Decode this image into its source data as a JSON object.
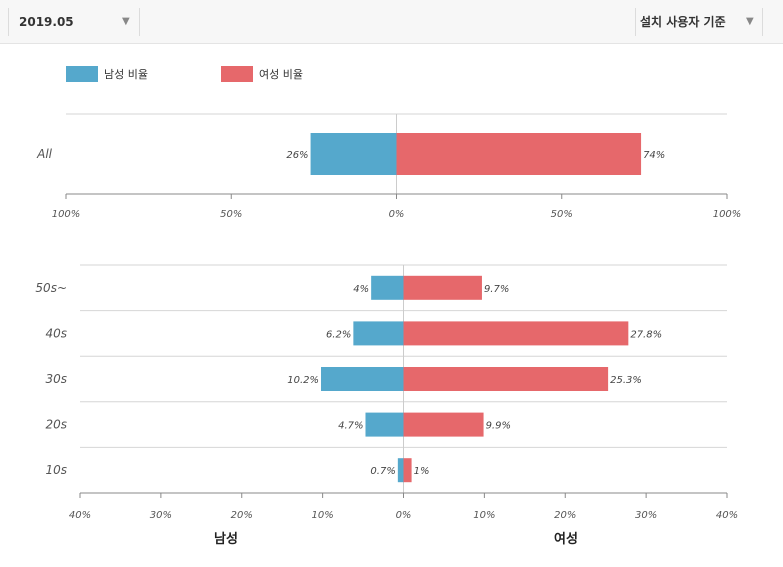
{
  "header": {
    "period_value": "2019.05",
    "basis_value": "설치 사용자 기준"
  },
  "colors": {
    "male": "#55a8cc",
    "female": "#e6686b"
  },
  "legend": {
    "male_label": "남성 비율",
    "female_label": "여성 비율"
  },
  "chart_data": [
    {
      "type": "bar",
      "orientation": "horizontal-diverging",
      "categories": [
        "All"
      ],
      "series": [
        {
          "name": "남성 비율",
          "values": [
            26
          ]
        },
        {
          "name": "여성 비율",
          "values": [
            74
          ]
        }
      ],
      "value_labels": {
        "male": [
          "26%"
        ],
        "female": [
          "74%"
        ]
      },
      "xlim": [
        -100,
        100
      ],
      "ticks": [
        "100%",
        "50%",
        "0%",
        "50%",
        "100%"
      ],
      "grid": true
    },
    {
      "type": "bar",
      "orientation": "horizontal-diverging",
      "categories": [
        "50s~",
        "40s",
        "30s",
        "20s",
        "10s"
      ],
      "series": [
        {
          "name": "남성 비율",
          "values": [
            4,
            6.2,
            10.2,
            4.7,
            0.7
          ]
        },
        {
          "name": "여성 비율",
          "values": [
            9.7,
            27.8,
            25.3,
            9.9,
            1
          ]
        }
      ],
      "value_labels": {
        "male": [
          "4%",
          "6.2%",
          "10.2%",
          "4.7%",
          "0.7%"
        ],
        "female": [
          "9.7%",
          "27.8%",
          "25.3%",
          "9.9%",
          "1%"
        ]
      },
      "xlim": [
        -40,
        40
      ],
      "ticks": [
        "40%",
        "30%",
        "20%",
        "10%",
        "0%",
        "10%",
        "20%",
        "30%",
        "40%"
      ],
      "xlabel_left": "남성",
      "xlabel_right": "여성",
      "grid": true
    }
  ]
}
